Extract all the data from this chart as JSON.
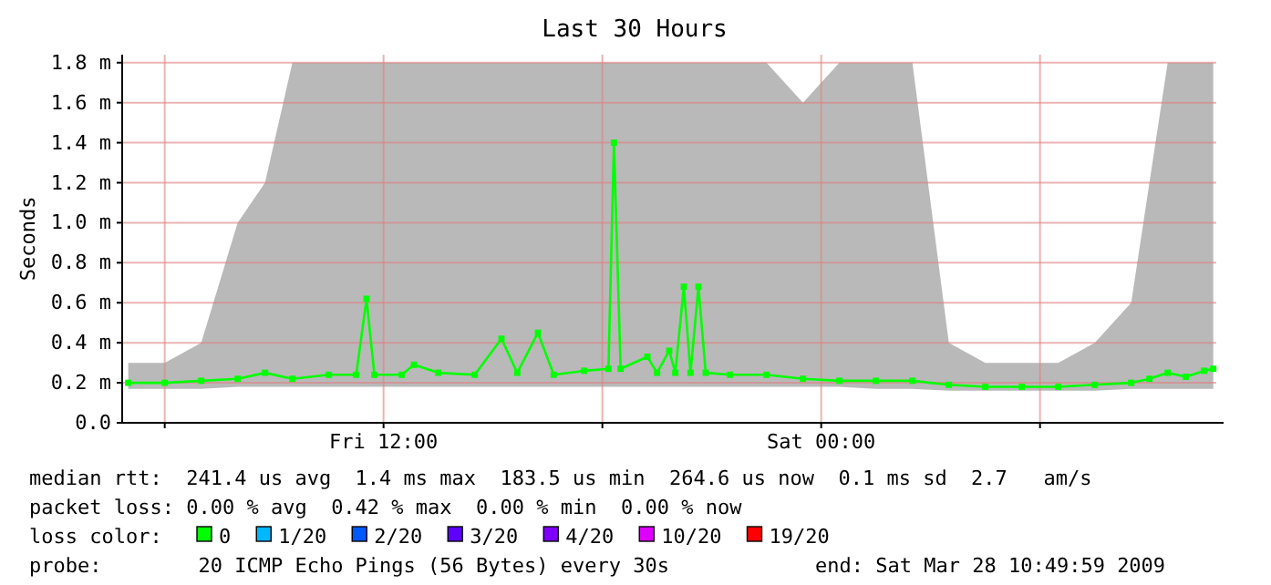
{
  "chart_data": {
    "type": "line",
    "title": "Last 30 Hours",
    "ylabel": "Seconds",
    "xlim": [
      "2009-03-27T04:50",
      "2009-03-28T10:50"
    ],
    "xticks": [
      {
        "value": "2009-03-27T06:00",
        "label": null
      },
      {
        "value": "2009-03-27T12:00",
        "label": "Fri 12:00"
      },
      {
        "value": "2009-03-27T18:00",
        "label": null
      },
      {
        "value": "2009-03-28T00:00",
        "label": "Sat 00:00"
      },
      {
        "value": "2009-03-28T06:00",
        "label": null
      }
    ],
    "ylim": [
      0,
      1.84
    ],
    "yticks": [
      {
        "value": 0,
        "label": "0.0"
      },
      {
        "value": 0.2,
        "label": "0.2 m"
      },
      {
        "value": 0.4,
        "label": "0.4 m"
      },
      {
        "value": 0.6,
        "label": "0.6 m"
      },
      {
        "value": 0.8,
        "label": "0.8 m"
      },
      {
        "value": 1.0,
        "label": "1.0 m"
      },
      {
        "value": 1.2,
        "label": "1.2 m"
      },
      {
        "value": 1.4,
        "label": "1.4 m"
      },
      {
        "value": 1.6,
        "label": "1.6 m"
      },
      {
        "value": 1.8,
        "label": "1.8 m"
      }
    ],
    "grid": true,
    "marker": "square",
    "legend": "bottom",
    "legend_title": "loss color:",
    "x": [
      "2009-03-27T05:00",
      "2009-03-27T06:00",
      "2009-03-27T07:00",
      "2009-03-27T08:00",
      "2009-03-27T08:45",
      "2009-03-27T09:30",
      "2009-03-27T10:30",
      "2009-03-27T11:15",
      "2009-03-27T11:32",
      "2009-03-27T11:45",
      "2009-03-27T12:30",
      "2009-03-27T12:50",
      "2009-03-27T13:30",
      "2009-03-27T14:30",
      "2009-03-27T15:14",
      "2009-03-27T15:40",
      "2009-03-27T16:14",
      "2009-03-27T16:40",
      "2009-03-27T17:30",
      "2009-03-27T18:10",
      "2009-03-27T18:19",
      "2009-03-27T18:30",
      "2009-03-27T19:14",
      "2009-03-27T19:30",
      "2009-03-27T19:50",
      "2009-03-27T20:00",
      "2009-03-27T20:14",
      "2009-03-27T20:25",
      "2009-03-27T20:38",
      "2009-03-27T20:50",
      "2009-03-27T21:30",
      "2009-03-27T22:30",
      "2009-03-27T23:30",
      "2009-03-28T00:30",
      "2009-03-28T01:30",
      "2009-03-28T02:30",
      "2009-03-28T03:30",
      "2009-03-28T04:30",
      "2009-03-28T05:30",
      "2009-03-28T06:30",
      "2009-03-28T07:30",
      "2009-03-28T08:30",
      "2009-03-28T09:00",
      "2009-03-28T09:30",
      "2009-03-28T10:00",
      "2009-03-28T10:30",
      "2009-03-28T10:45"
    ],
    "series": [
      {
        "name": "0",
        "color": "#00ff00",
        "values": [
          0.2,
          0.2,
          0.21,
          0.22,
          0.25,
          0.22,
          0.24,
          0.24,
          0.62,
          0.24,
          0.24,
          0.29,
          0.25,
          0.24,
          0.42,
          0.25,
          0.45,
          0.24,
          0.26,
          0.27,
          1.4,
          0.27,
          0.33,
          0.25,
          0.36,
          0.25,
          0.68,
          0.25,
          0.68,
          0.25,
          0.24,
          0.24,
          0.22,
          0.21,
          0.21,
          0.21,
          0.19,
          0.18,
          0.18,
          0.18,
          0.19,
          0.2,
          0.22,
          0.25,
          0.23,
          0.26,
          0.27
        ],
        "lower": [
          0.17,
          0.17,
          0.17,
          0.18,
          0.18,
          0.18,
          0.18,
          0.18,
          0.18,
          0.18,
          0.18,
          0.18,
          0.18,
          0.18,
          0.18,
          0.18,
          0.18,
          0.18,
          0.18,
          0.18,
          0.18,
          0.18,
          0.18,
          0.18,
          0.18,
          0.18,
          0.18,
          0.18,
          0.18,
          0.18,
          0.18,
          0.18,
          0.18,
          0.18,
          0.17,
          0.17,
          0.16,
          0.16,
          0.16,
          0.16,
          0.16,
          0.17,
          0.17,
          0.17,
          0.17,
          0.17,
          0.17
        ],
        "upper": [
          0.3,
          0.3,
          0.4,
          1.0,
          1.2,
          1.8,
          1.8,
          1.8,
          1.8,
          1.8,
          1.8,
          1.8,
          1.8,
          1.8,
          1.8,
          1.8,
          1.8,
          1.8,
          1.8,
          1.8,
          1.8,
          1.8,
          1.8,
          1.8,
          1.8,
          1.8,
          1.8,
          1.8,
          1.8,
          1.8,
          1.8,
          1.8,
          1.6,
          1.8,
          1.8,
          1.8,
          0.4,
          0.3,
          0.3,
          0.3,
          0.4,
          0.6,
          1.2,
          1.8,
          1.8,
          1.8,
          1.8
        ]
      },
      {
        "name": "1/20",
        "color": "#00b8ff",
        "values": [
          null,
          null,
          null,
          null,
          null,
          null,
          null,
          null,
          null,
          null,
          null,
          null,
          null,
          null,
          null,
          null,
          null,
          null,
          null,
          null,
          null,
          null,
          null,
          null,
          null,
          null,
          null,
          null,
          null,
          null,
          null,
          null,
          null,
          null,
          null,
          null,
          null,
          null,
          null,
          null,
          null,
          null,
          null,
          null,
          null,
          null,
          null
        ]
      },
      {
        "name": "2/20",
        "color": "#0059ff",
        "values": [
          null,
          null,
          null,
          null,
          null,
          null,
          null,
          null,
          null,
          null,
          null,
          null,
          null,
          null,
          null,
          null,
          null,
          null,
          null,
          null,
          null,
          null,
          null,
          null,
          null,
          null,
          null,
          null,
          null,
          null,
          null,
          null,
          null,
          null,
          null,
          null,
          null,
          null,
          null,
          null,
          null,
          null,
          null,
          null,
          null,
          null,
          null
        ]
      },
      {
        "name": "3/20",
        "color": "#5e00ff",
        "values": [
          null,
          null,
          null,
          null,
          null,
          null,
          null,
          null,
          null,
          null,
          null,
          null,
          null,
          null,
          null,
          null,
          null,
          null,
          null,
          null,
          null,
          null,
          null,
          null,
          null,
          null,
          null,
          null,
          null,
          null,
          null,
          null,
          null,
          null,
          null,
          null,
          null,
          null,
          null,
          null,
          null,
          null,
          null,
          null,
          null,
          null,
          null
        ]
      },
      {
        "name": "4/20",
        "color": "#7e00ff",
        "values": [
          null,
          null,
          null,
          null,
          null,
          null,
          null,
          null,
          null,
          null,
          null,
          null,
          null,
          null,
          null,
          null,
          null,
          null,
          null,
          null,
          null,
          null,
          null,
          null,
          null,
          null,
          null,
          null,
          null,
          null,
          null,
          null,
          null,
          null,
          null,
          null,
          null,
          null,
          null,
          null,
          null,
          null,
          null,
          null,
          null,
          null,
          null
        ]
      },
      {
        "name": "10/20",
        "color": "#dd00ff",
        "values": [
          null,
          null,
          null,
          null,
          null,
          null,
          null,
          null,
          null,
          null,
          null,
          null,
          null,
          null,
          null,
          null,
          null,
          null,
          null,
          null,
          null,
          null,
          null,
          null,
          null,
          null,
          null,
          null,
          null,
          null,
          null,
          null,
          null,
          null,
          null,
          null,
          null,
          null,
          null,
          null,
          null,
          null,
          null,
          null,
          null,
          null,
          null
        ]
      },
      {
        "name": "19/20",
        "color": "#ff0000",
        "values": [
          null,
          null,
          null,
          null,
          null,
          null,
          null,
          null,
          null,
          null,
          null,
          null,
          null,
          null,
          null,
          null,
          null,
          null,
          null,
          null,
          null,
          null,
          null,
          null,
          null,
          null,
          null,
          null,
          null,
          null,
          null,
          null,
          null,
          null,
          null,
          null,
          null,
          null,
          null,
          null,
          null,
          null,
          null,
          null,
          null,
          null,
          null
        ]
      }
    ],
    "annotations": [
      "median rtt:  241.4 us avg  1.4 ms max  183.5 us min  264.6 us now  0.1 ms sd  2.7   am/s",
      "packet loss: 0.00 % avg  0.42 % max  0.00 % min  0.00 % now",
      "probe:        20 ICMP Echo Pings (56 Bytes) every 30s",
      "end: Sat Mar 28 10:49:59 2009"
    ]
  }
}
